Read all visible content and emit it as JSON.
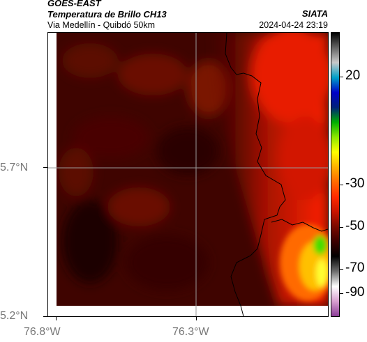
{
  "header": {
    "satellite": "GOES-EAST",
    "product": "Temperatura de Brillo CH13",
    "region": "Via Medellín - Quibdó 50km",
    "organization": "SIATA",
    "timestamp": "2024-04-24 23:19"
  },
  "axes": {
    "latitude_labels": [
      "5.7°N",
      "5.2°N"
    ],
    "longitude_labels": [
      "76.8°W",
      "76.3°W"
    ]
  },
  "colorbar": {
    "labels": [
      "20",
      "-30",
      "-50",
      "-70",
      "-90"
    ],
    "colors": [
      "#8b3c96",
      "#d8a0d0",
      "#ffffff",
      "#6e6e6e",
      "#000000",
      "#3a0000",
      "#7a0a00",
      "#c81400",
      "#ff2a00",
      "#ff6a00",
      "#ffb000",
      "#ffff00",
      "#8ce800",
      "#00b000",
      "#00207a",
      "#0000c8",
      "#00a0c8",
      "#c8c8c8",
      "#646464",
      "#000000"
    ]
  },
  "map": {
    "background_color": "#3a0000",
    "warm_color": "#ff2a00",
    "hot_color": "#ffe000",
    "grid_color": "#9a9a9a"
  }
}
